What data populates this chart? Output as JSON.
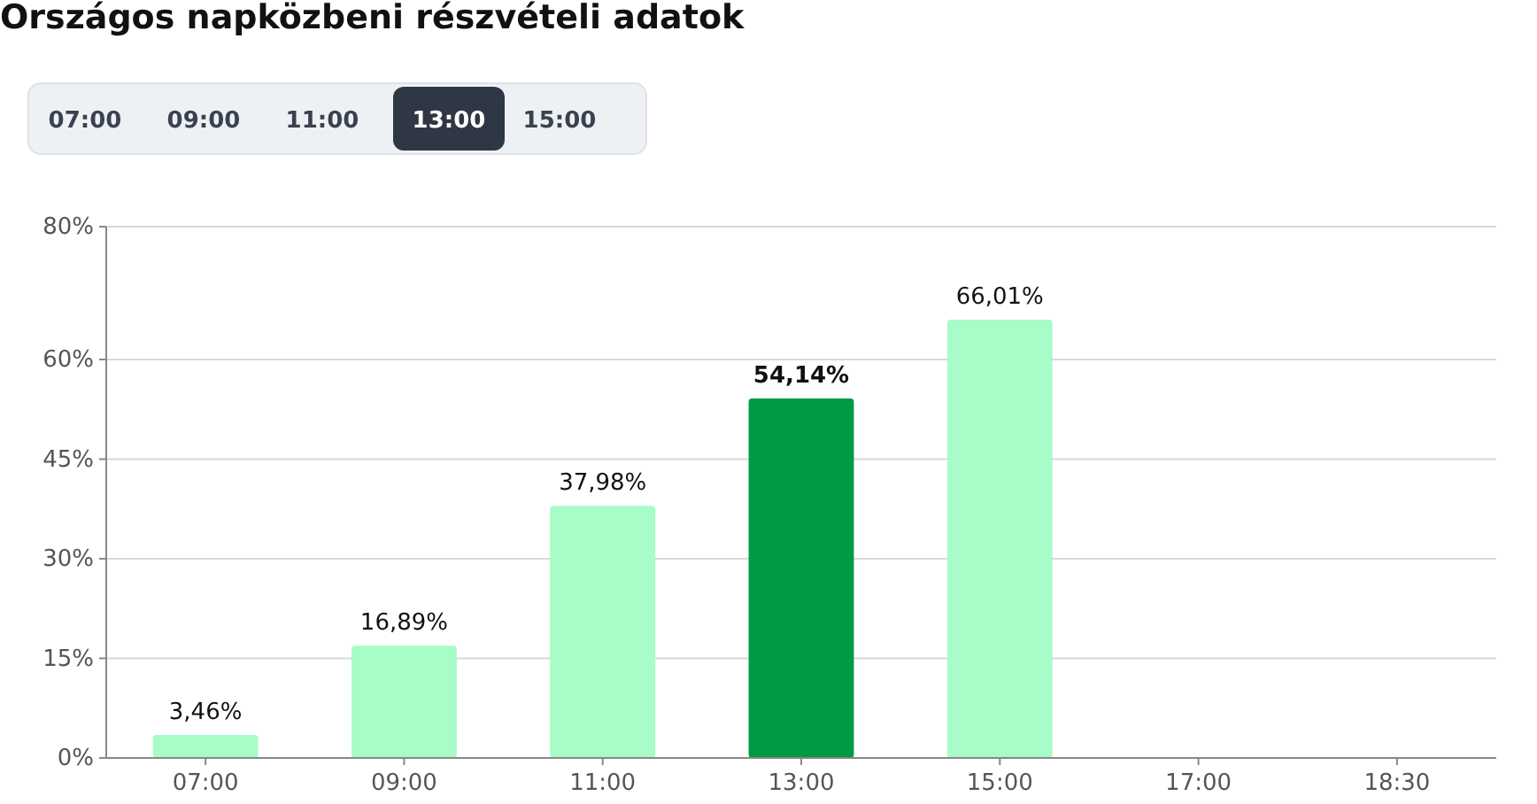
{
  "chart_data": {
    "type": "bar",
    "title": "Országos napközbeni részvételi adatok",
    "categories": [
      "07:00",
      "09:00",
      "11:00",
      "13:00",
      "15:00",
      "17:00",
      "18:30"
    ],
    "values": [
      3.46,
      16.89,
      37.98,
      54.14,
      66.01,
      null,
      null
    ],
    "colors": [
      "#a7fcc8",
      "#a7fcc8",
      "#a7fcc8",
      "#009a44",
      "#a7fcc8",
      null,
      null
    ],
    "value_labels": [
      "3,46%",
      "16,89%",
      "37,98%",
      "54,14%",
      "66,01%",
      null,
      null
    ],
    "ylim": [
      0,
      80
    ],
    "yticks": [
      {
        "value": 0,
        "label": "0%"
      },
      {
        "value": 15,
        "label": "15%"
      },
      {
        "value": 30,
        "label": "30%"
      },
      {
        "value": 45,
        "label": "45%"
      },
      {
        "value": 60,
        "label": "60%"
      },
      {
        "value": 80,
        "label": "80%"
      }
    ],
    "grid": "y",
    "annotations": [
      "07:00",
      "09:00",
      "11:00",
      "13:00",
      "15:00"
    ]
  }
}
